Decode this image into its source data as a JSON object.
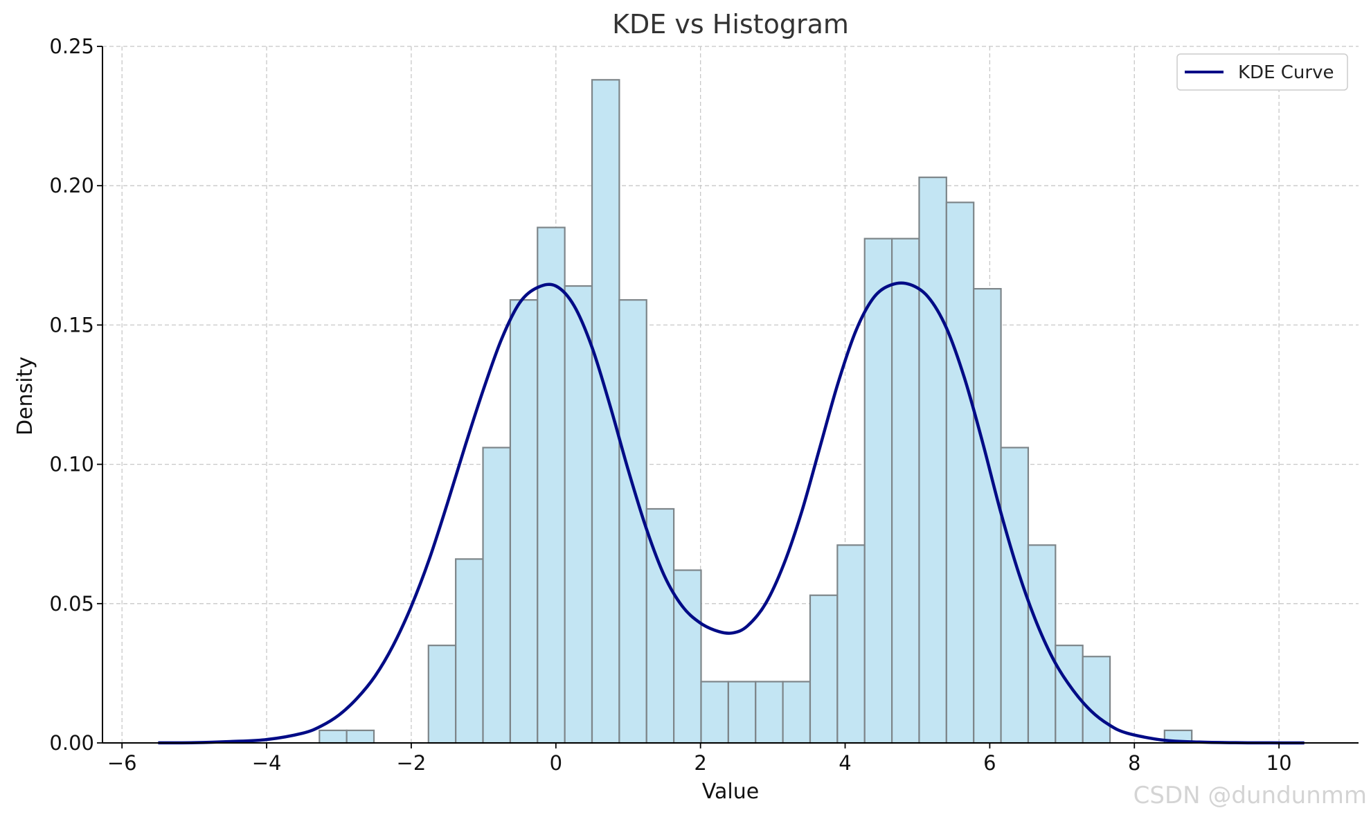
{
  "chart_data": {
    "type": "bar",
    "title": "KDE vs Histogram",
    "xlabel": "Value",
    "ylabel": "Density",
    "xlim": [
      -6.27,
      11.1
    ],
    "ylim": [
      0,
      0.25
    ],
    "grid": true,
    "x_ticks": [
      {
        "value": -6,
        "label": "−6"
      },
      {
        "value": -4,
        "label": "−4"
      },
      {
        "value": -2,
        "label": "−2"
      },
      {
        "value": 0,
        "label": "0"
      },
      {
        "value": 2,
        "label": "2"
      },
      {
        "value": 4,
        "label": "4"
      },
      {
        "value": 6,
        "label": "6"
      },
      {
        "value": 8,
        "label": "8"
      },
      {
        "value": 10,
        "label": "10"
      }
    ],
    "y_ticks": [
      {
        "value": 0,
        "label": "0.00"
      },
      {
        "value": 0.05,
        "label": "0.05"
      },
      {
        "value": 0.1,
        "label": "0.10"
      },
      {
        "value": 0.15,
        "label": "0.15"
      },
      {
        "value": 0.2,
        "label": "0.20"
      },
      {
        "value": 0.25,
        "label": "0.25"
      }
    ],
    "histogram": {
      "bin_start": -3.27,
      "bin_width": 0.377,
      "values": [
        0.0045,
        0.0045,
        0,
        0,
        0.035,
        0.066,
        0.106,
        0.159,
        0.185,
        0.164,
        0.238,
        0.159,
        0.084,
        0.062,
        0.022,
        0.022,
        0.022,
        0.022,
        0.053,
        0.071,
        0.181,
        0.181,
        0.203,
        0.194,
        0.163,
        0.106,
        0.071,
        0.035,
        0.031,
        0,
        0,
        0.0045
      ],
      "fill": "#c3e5f3",
      "edge": "#7d8589"
    },
    "series": [
      {
        "name": "KDE Curve",
        "type": "line",
        "color": "#000b86",
        "x": [
          -5.5,
          -5.0,
          -4.5,
          -4.0,
          -3.5,
          -3.25,
          -3.0,
          -2.75,
          -2.5,
          -2.25,
          -2.0,
          -1.75,
          -1.5,
          -1.25,
          -1.0,
          -0.75,
          -0.5,
          -0.25,
          0.0,
          0.25,
          0.5,
          0.75,
          1.0,
          1.25,
          1.5,
          1.75,
          2.0,
          2.25,
          2.45,
          2.65,
          2.9,
          3.15,
          3.4,
          3.65,
          3.9,
          4.15,
          4.4,
          4.65,
          4.9,
          5.15,
          5.4,
          5.65,
          5.9,
          6.15,
          6.4,
          6.65,
          6.9,
          7.15,
          7.4,
          7.65,
          7.9,
          8.4,
          8.9,
          9.4,
          9.9,
          10.35
        ],
        "y": [
          2e-05,
          0.0001,
          0.0005,
          0.0012,
          0.0035,
          0.006,
          0.01,
          0.016,
          0.024,
          0.035,
          0.049,
          0.066,
          0.086,
          0.107,
          0.127,
          0.145,
          0.158,
          0.1635,
          0.164,
          0.157,
          0.142,
          0.121,
          0.098,
          0.077,
          0.06,
          0.049,
          0.043,
          0.04,
          0.0395,
          0.042,
          0.05,
          0.064,
          0.083,
          0.106,
          0.129,
          0.148,
          0.16,
          0.1645,
          0.1645,
          0.16,
          0.149,
          0.131,
          0.108,
          0.083,
          0.061,
          0.043,
          0.029,
          0.019,
          0.0115,
          0.0065,
          0.0035,
          0.001,
          0.0003,
          8e-05,
          2e-05,
          5e-06
        ]
      }
    ],
    "legend_position": "top-right"
  },
  "watermark": "CSDN @dundunmm"
}
